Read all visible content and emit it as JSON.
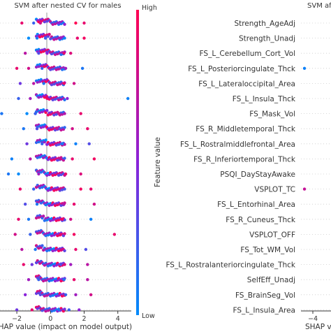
{
  "chart_data": [
    {
      "type": "scatter",
      "title": "SVM after nested CV for males",
      "xlabel": "SHAP value (impact on model output)",
      "xlim": [
        -3,
        4.8
      ],
      "xticks": [
        -2,
        0,
        2,
        4
      ],
      "colorbar": {
        "label": "Feature value",
        "high": "High",
        "low": "Low",
        "high_color": "#ff0052",
        "low_color": "#008bfb"
      },
      "rows": [
        {
          "points": [
            [
              -1.7,
              0.9
            ],
            [
              -1.0,
              0.2
            ],
            [
              -0.6,
              0.8
            ],
            [
              0.5,
              0.5
            ],
            [
              1.5,
              1.0
            ],
            [
              2.0,
              0.9
            ]
          ]
        },
        {
          "points": [
            [
              -1.3,
              0.0
            ],
            [
              -0.8,
              0.1
            ],
            [
              -0.3,
              0.2
            ],
            [
              0.6,
              0.6
            ],
            [
              1.6,
              0.9
            ],
            [
              2.0,
              0.95
            ]
          ]
        },
        {
          "points": [
            [
              -1.5,
              0.7
            ],
            [
              -0.7,
              0.3
            ],
            [
              -0.2,
              0.5
            ],
            [
              0.8,
              0.9
            ],
            [
              1.2,
              0.85
            ]
          ]
        },
        {
          "points": [
            [
              -2.0,
              0.9
            ],
            [
              -1.3,
              0.8
            ],
            [
              -0.5,
              0.2
            ],
            [
              0.9,
              0.6
            ],
            [
              1.9,
              0.1
            ]
          ]
        },
        {
          "points": [
            [
              -1.8,
              0.4
            ],
            [
              -1.0,
              0.7
            ],
            [
              -0.4,
              0.1
            ],
            [
              0.8,
              0.95
            ],
            [
              1.4,
              0.8
            ]
          ]
        },
        {
          "points": [
            [
              -1.9,
              0.2
            ],
            [
              -1.2,
              0.6
            ],
            [
              -0.2,
              0.9
            ],
            [
              1.0,
              0.5
            ],
            [
              4.6,
              0.05
            ]
          ]
        },
        {
          "points": [
            [
              -2.9,
              0.1
            ],
            [
              -1.4,
              0.0
            ],
            [
              -0.9,
              0.2
            ],
            [
              0.5,
              0.8
            ],
            [
              1.8,
              0.9
            ]
          ]
        },
        {
          "points": [
            [
              -1.6,
              0.1
            ],
            [
              -0.8,
              0.3
            ],
            [
              0.4,
              0.7
            ],
            [
              1.3,
              0.8
            ],
            [
              2.2,
              0.9
            ]
          ]
        },
        {
          "points": [
            [
              -1.4,
              0.4
            ],
            [
              -0.5,
              0.2
            ],
            [
              0.7,
              0.1
            ],
            [
              1.5,
              0.05
            ],
            [
              2.3,
              0.3
            ]
          ]
        },
        {
          "points": [
            [
              -2.3,
              0.05
            ],
            [
              -1.2,
              0.7
            ],
            [
              0.6,
              0.8
            ],
            [
              1.3,
              0.9
            ],
            [
              2.6,
              0.95
            ]
          ]
        },
        {
          "points": [
            [
              -2.5,
              0.1
            ],
            [
              -1.9,
              0.0
            ],
            [
              -0.7,
              0.6
            ],
            [
              0.9,
              0.9
            ],
            [
              1.8,
              0.85
            ]
          ]
        },
        {
          "points": [
            [
              -1.8,
              0.9
            ],
            [
              -1.0,
              0.2
            ],
            [
              0.5,
              0.8
            ],
            [
              1.8,
              0.95
            ],
            [
              2.4,
              0.9
            ]
          ]
        },
        {
          "points": [
            [
              -1.5,
              0.3
            ],
            [
              -0.8,
              0.1
            ],
            [
              0.8,
              0.7
            ],
            [
              1.4,
              0.9
            ],
            [
              2.6,
              0.8
            ]
          ]
        },
        {
          "points": [
            [
              -1.9,
              0.9
            ],
            [
              -1.3,
              0.1
            ],
            [
              0.7,
              0.95
            ],
            [
              1.2,
              0.8
            ],
            [
              2.4,
              0.05
            ]
          ]
        },
        {
          "points": [
            [
              -2.1,
              0.8
            ],
            [
              -1.2,
              0.2
            ],
            [
              0.6,
              0.9
            ],
            [
              1.4,
              0.95
            ],
            [
              3.8,
              0.9
            ]
          ]
        },
        {
          "points": [
            [
              -1.7,
              0.7
            ],
            [
              -0.9,
              0.1
            ],
            [
              0.7,
              0.8
            ],
            [
              1.5,
              0.9
            ],
            [
              2.1,
              0.3
            ]
          ]
        },
        {
          "points": [
            [
              -1.6,
              0.9
            ],
            [
              -1.1,
              0.4
            ],
            [
              0.6,
              0.3
            ],
            [
              1.2,
              0.6
            ],
            [
              2.2,
              0.7
            ]
          ]
        },
        {
          "points": [
            [
              -1.3,
              0.6
            ],
            [
              -0.7,
              0.2
            ],
            [
              0.8,
              0.1
            ],
            [
              1.4,
              0.9
            ],
            [
              2.2,
              0.7
            ]
          ]
        },
        {
          "points": [
            [
              -1.5,
              0.5
            ],
            [
              -0.6,
              0.3
            ],
            [
              0.9,
              0.2
            ],
            [
              1.5,
              0.6
            ],
            [
              2.4,
              0.8
            ]
          ]
        },
        {
          "points": [
            [
              -2.0,
              0.4
            ],
            [
              -1.1,
              0.9
            ],
            [
              0.5,
              0.1
            ],
            [
              1.1,
              0.2
            ],
            [
              1.7,
              0.5
            ]
          ]
        }
      ]
    },
    {
      "type": "scatter",
      "title": "SVM af",
      "xlabel": "SHAP valu",
      "xticks": [
        -4
      ],
      "features": [
        "Strength_AgeAdj",
        "Strength_Unadj",
        "FS_L_Cerebellum_Cort_Vol",
        "FS_L_Posteriorcingulate_Thck",
        "FS_L_Lateraloccipital_Area",
        "FS_L_Insula_Thck",
        "FS_Mask_Vol",
        "FS_R_Middletemporal_Thck",
        "FS_L_Rostralmiddlefrontal_Area",
        "FS_R_Inferiortemporal_Thck",
        "PSQI_DayStayAwake",
        "VSPLOT_TC",
        "FS_L_Entorhinal_Area",
        "FS_R_Cuneus_Thck",
        "VSPLOT_OFF",
        "FS_Tot_WM_Vol",
        "FS_L_Rostralanteriorcingulate_Thck",
        "SelfEff_Unadj",
        "FS_BrainSeg_Vol",
        "FS_L_Insula_Area"
      ],
      "visible_points": [
        {
          "row": 3,
          "x": -4.0,
          "value": 0.05
        },
        {
          "row": 11,
          "x": -4.0,
          "value": 0.75
        }
      ]
    }
  ]
}
